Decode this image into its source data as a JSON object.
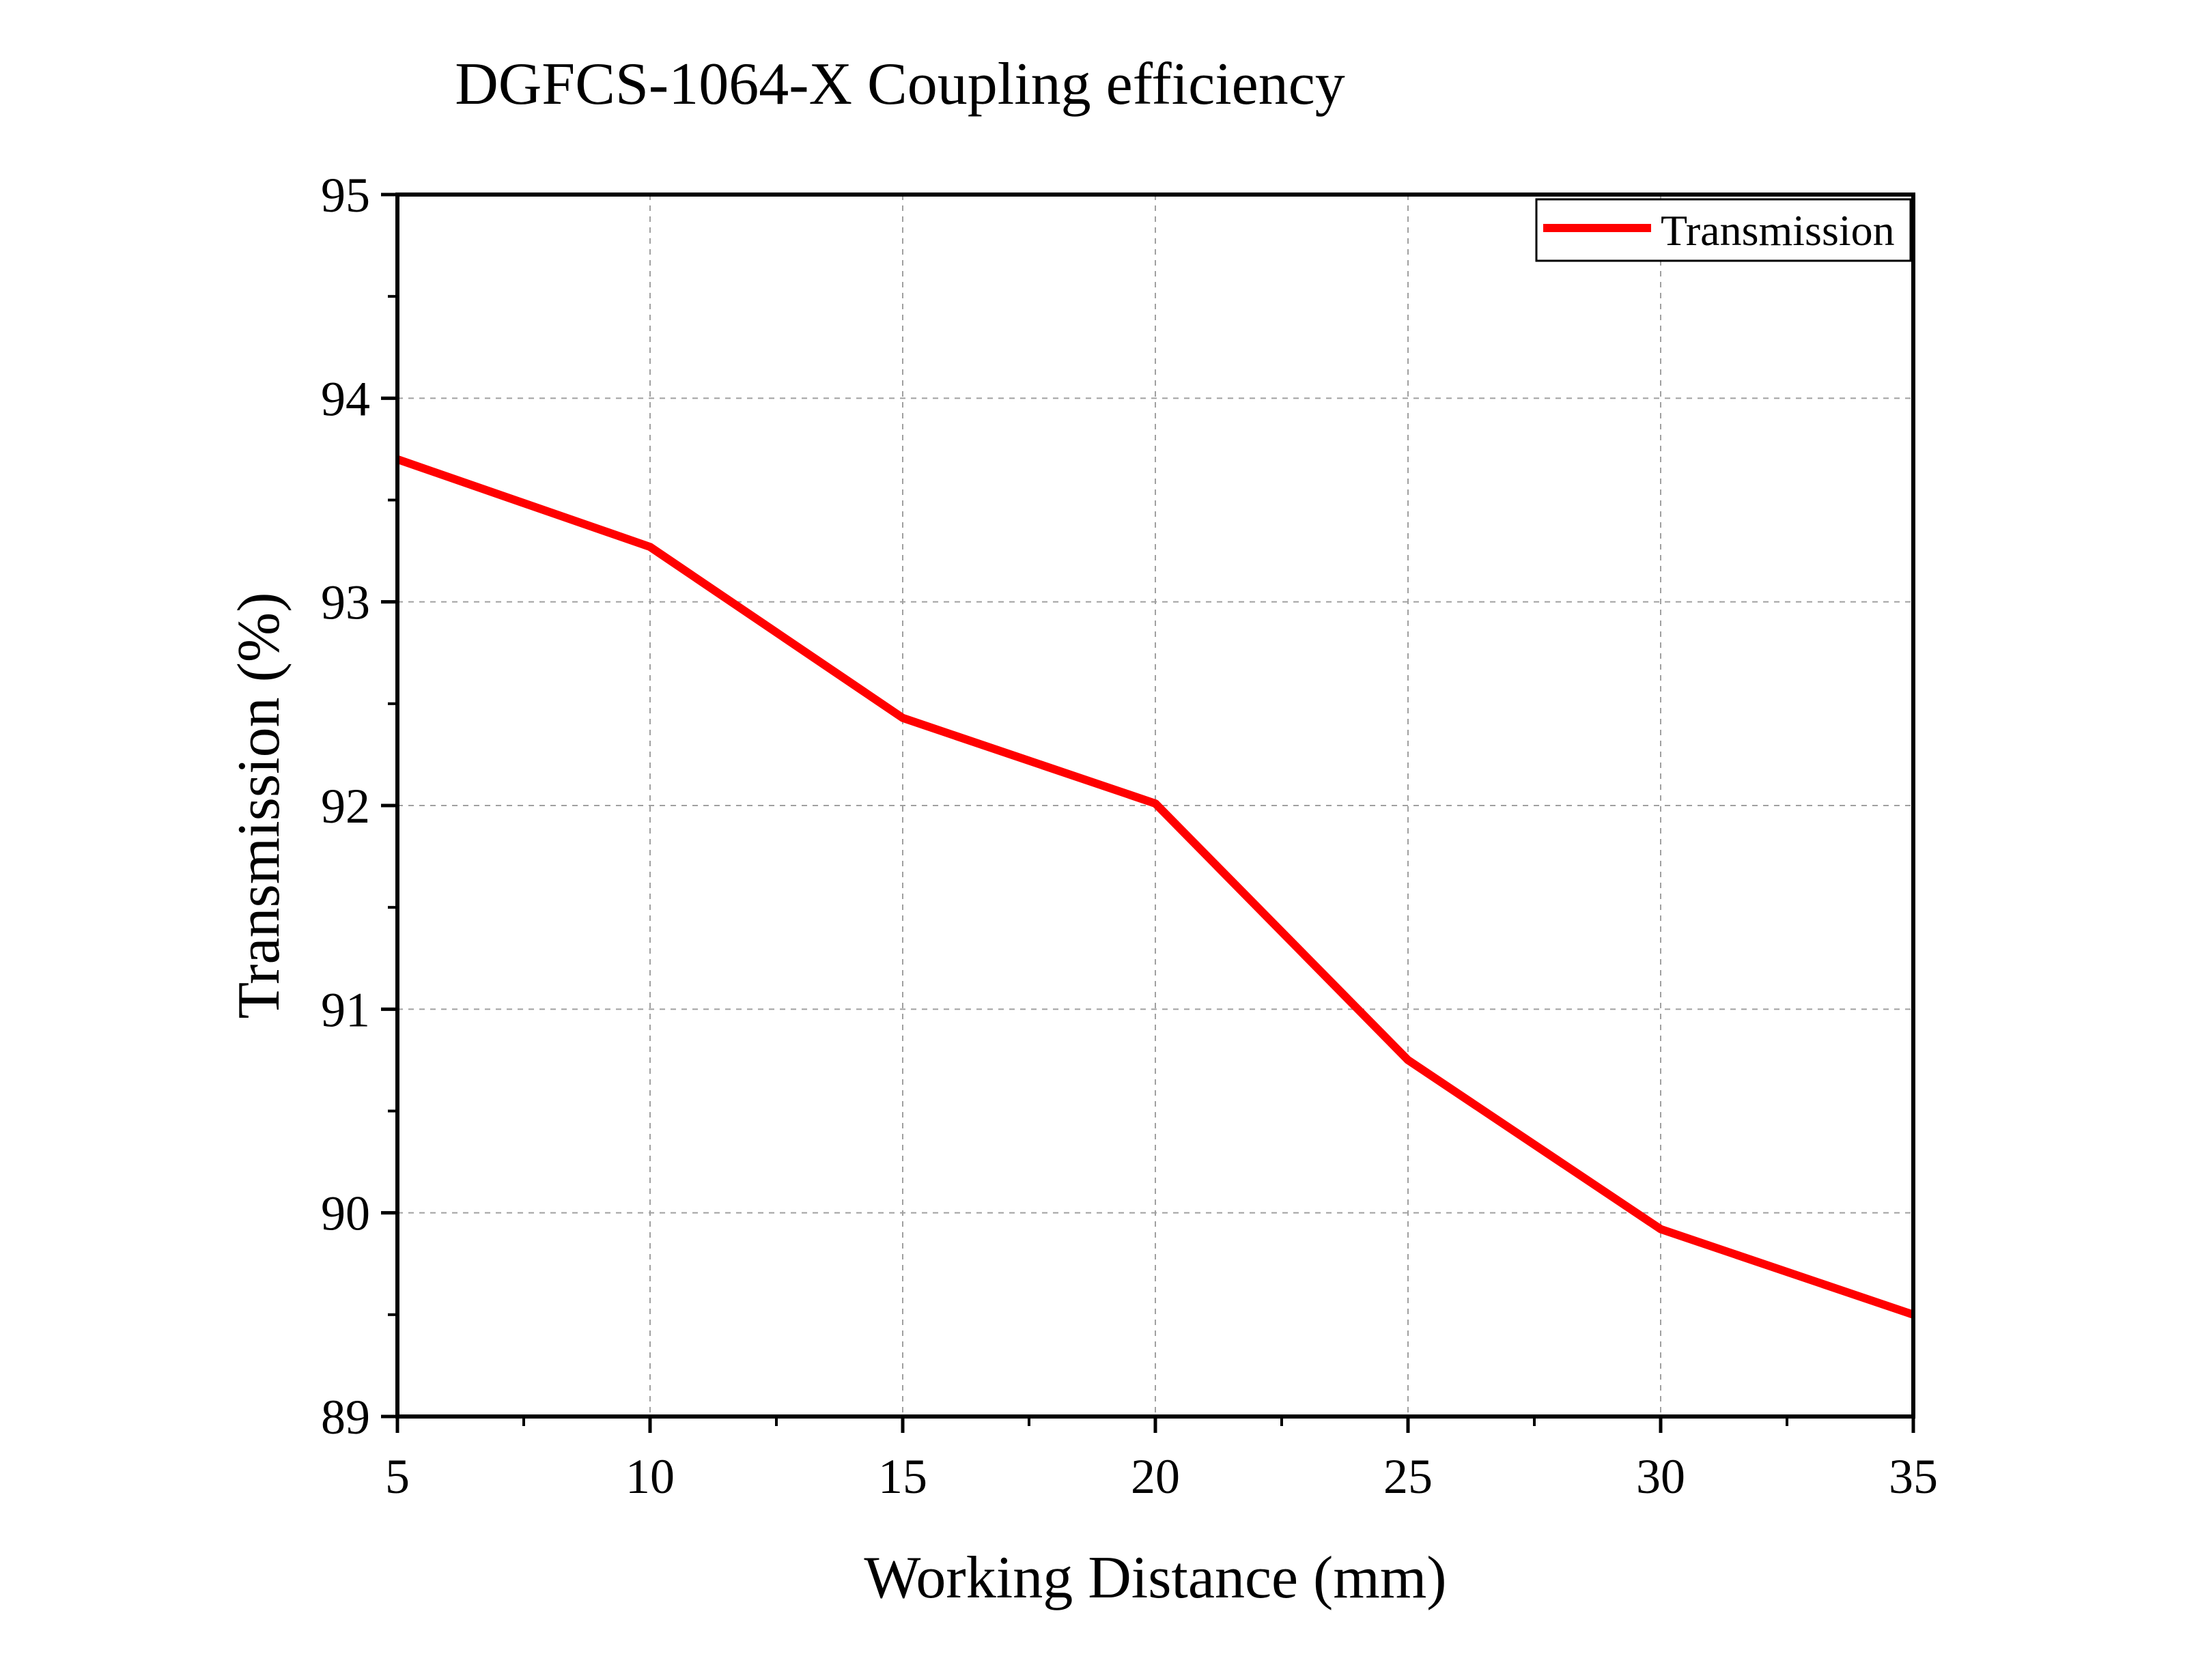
{
  "chart_data": {
    "type": "line",
    "title": "DGFCS-1064-X Coupling efficiency",
    "xlabel": "Working Distance (mm)",
    "ylabel": "Transmission (%)",
    "xlim": [
      5,
      35
    ],
    "ylim": [
      89,
      95
    ],
    "xticks": [
      5,
      10,
      15,
      20,
      25,
      30,
      35
    ],
    "yticks": [
      89,
      90,
      91,
      92,
      93,
      94,
      95
    ],
    "grid": true,
    "legend_position": "top-right",
    "series": [
      {
        "name": "Transmission",
        "color": "#ff0000",
        "x": [
          5,
          10,
          15,
          20,
          25,
          30,
          35
        ],
        "y": [
          93.7,
          93.27,
          92.43,
          92.01,
          90.75,
          89.92,
          89.5
        ]
      }
    ]
  }
}
